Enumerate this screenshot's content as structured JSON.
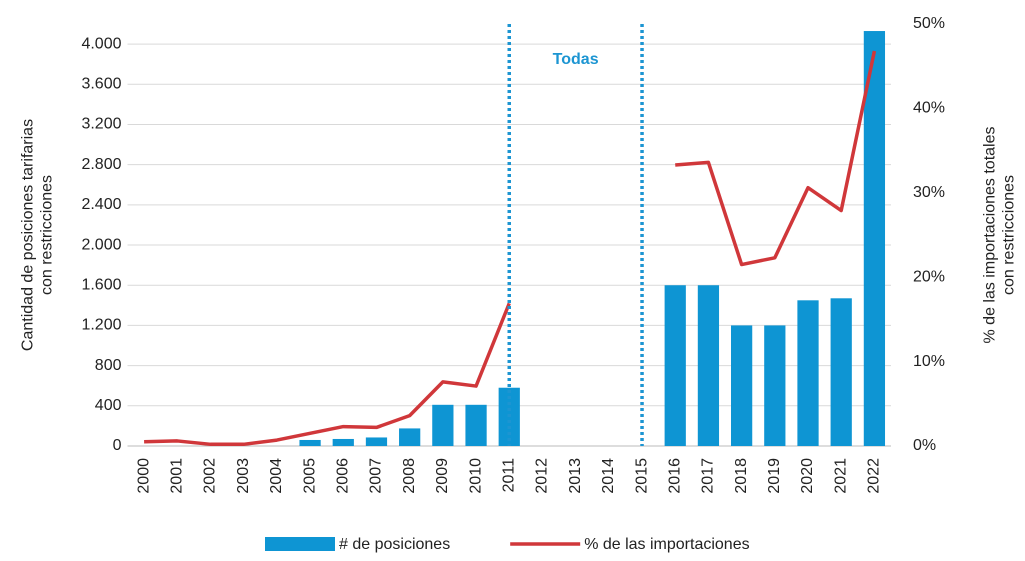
{
  "chart_data": {
    "type": "bar",
    "categories": [
      "2000",
      "2001",
      "2002",
      "2003",
      "2004",
      "2005",
      "2006",
      "2007",
      "2008",
      "2009",
      "2010",
      "2011",
      "2012",
      "2013",
      "2014",
      "2015",
      "2016",
      "2017",
      "2018",
      "2019",
      "2020",
      "2021",
      "2022"
    ],
    "series": [
      {
        "name": "# de posiciones",
        "type": "bar",
        "color": "#0e95d3",
        "values": [
          null,
          null,
          null,
          null,
          null,
          60,
          70,
          85,
          175,
          410,
          410,
          580,
          null,
          null,
          null,
          null,
          1600,
          1600,
          1200,
          1200,
          1450,
          1470,
          4130
        ]
      },
      {
        "name": "% de las importaciones",
        "type": "line",
        "color": "#d0373a",
        "axis": "y2",
        "values": [
          0.5,
          0.6,
          0.2,
          0.2,
          0.7,
          1.5,
          2.3,
          2.2,
          3.6,
          7.6,
          7.1,
          16.9,
          null,
          null,
          null,
          null,
          33.3,
          33.6,
          21.5,
          22.3,
          30.6,
          27.9,
          46.8
        ]
      }
    ],
    "ylabel": "Cantidad de posiciones tarifarias con restricciones",
    "y2label": "% de las importaciones totales con restricciones",
    "ylim": [
      0,
      4200
    ],
    "yticks": [
      0,
      400,
      800,
      {
        "value": 1200,
        "label": "1.200"
      },
      {
        "value": 1600,
        "label": "1.600"
      },
      {
        "value": 2000,
        "label": "2.000"
      },
      {
        "value": 2400,
        "label": "2.400"
      },
      {
        "value": 2800,
        "label": "2.800"
      },
      {
        "value": 3200,
        "label": "3.200"
      },
      {
        "value": 3600,
        "label": "3.600"
      },
      {
        "value": 4000,
        "label": "4.000"
      }
    ],
    "y2lim": [
      0,
      50
    ],
    "y2ticks": [
      {
        "value": 0,
        "label": "0%"
      },
      {
        "value": 10,
        "label": "10%"
      },
      {
        "value": 20,
        "label": "20%"
      },
      {
        "value": 30,
        "label": "30%"
      },
      {
        "value": 40,
        "label": "40%"
      },
      {
        "value": 50,
        "label": "50%"
      }
    ],
    "grid": true,
    "vlines": [
      "2011",
      "2015"
    ],
    "vline_color": "#1c95d2",
    "annotation": "Todas",
    "legend": "bottom"
  }
}
